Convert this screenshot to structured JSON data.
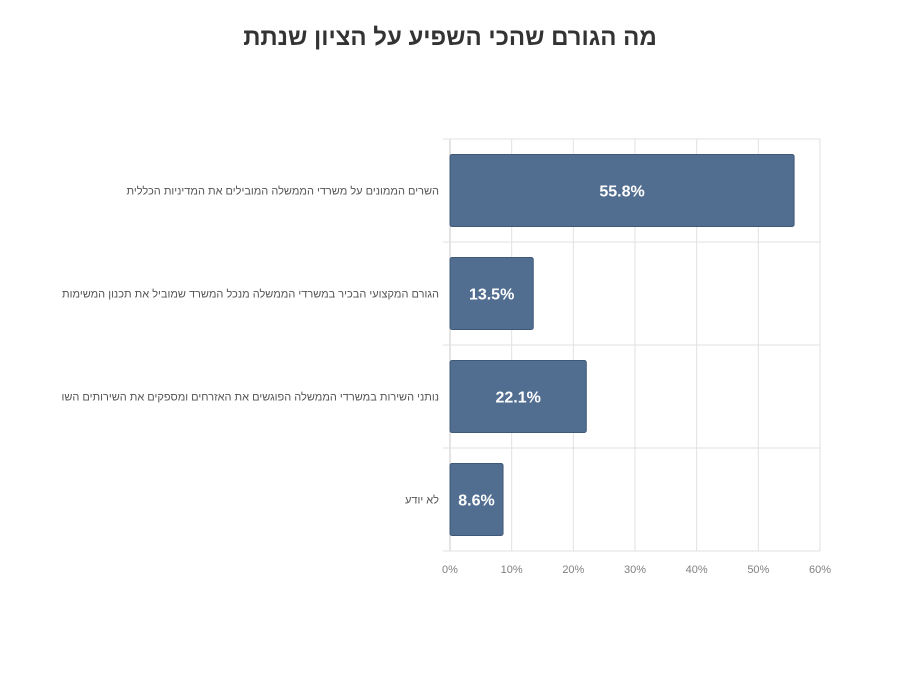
{
  "colors": {
    "bar": "#516e91",
    "bar_edge": "#3f5878",
    "grid": "#e2e2e2",
    "axis": "#c8c8c8",
    "title": "#333333"
  },
  "chart_data": {
    "type": "bar",
    "orientation": "horizontal",
    "title": "מה הגורם שהכי השפיע על הציון שנתת",
    "categories": [
      "השרים הממונים על משרדי הממשלה המובילים את המדיניות הכללית",
      "הגורם המקצועי הבכיר במשרדי הממשלה מנכל המשרד שמוביל את תכנון המשימות",
      "נותני השירות במשרדי הממשלה הפוגשים את האזרחים ומספקים את השירותים השו",
      "לא יודע"
    ],
    "values": [
      55.8,
      13.5,
      22.1,
      8.6
    ],
    "data_labels": [
      "55.8%",
      "13.5%",
      "22.1%",
      "8.6%"
    ],
    "xlim": [
      0,
      60
    ],
    "x_ticks": [
      "0%",
      "10%",
      "20%",
      "30%",
      "40%",
      "50%",
      "60%"
    ],
    "grid": true,
    "legend": "none"
  }
}
